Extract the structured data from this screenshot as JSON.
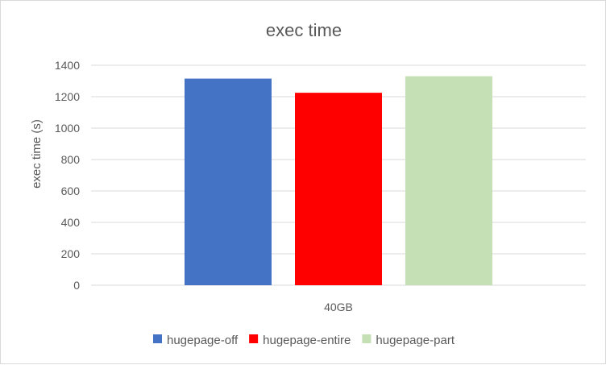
{
  "chart_data": {
    "type": "bar",
    "title": "exec time",
    "xlabel": "",
    "ylabel": "exec time (s)",
    "categories": [
      "40GB"
    ],
    "ylim": [
      0,
      1400
    ],
    "yticks": [
      0,
      200,
      400,
      600,
      800,
      1000,
      1200,
      1400
    ],
    "grid": true,
    "legend_position": "bottom",
    "series": [
      {
        "name": "hugepage-off",
        "values": [
          1315
        ],
        "color": "#4472C4"
      },
      {
        "name": "hugepage-entire",
        "values": [
          1225
        ],
        "color": "#FF0000"
      },
      {
        "name": "hugepage-part",
        "values": [
          1330
        ],
        "color": "#C5E0B4"
      }
    ]
  }
}
